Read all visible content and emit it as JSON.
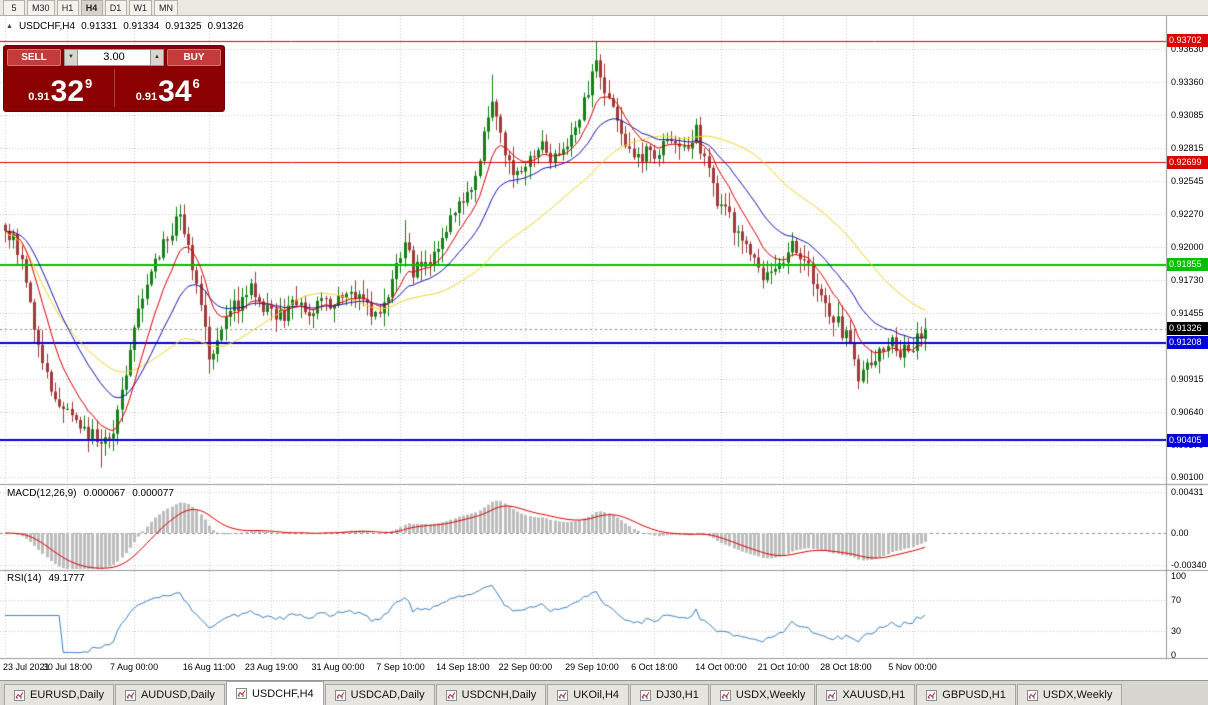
{
  "icons": {
    "symbol_arrow": "▲",
    "volume_down": "▼",
    "volume_up": "▲"
  },
  "toolbar": {
    "periods": [
      "5",
      "M30",
      "H1",
      "H4",
      "D1",
      "W1",
      "MN"
    ],
    "active": "H4"
  },
  "symbol_header": {
    "symbol": "USDCHF,H4",
    "open": "0.91331",
    "high": "0.91334",
    "low": "0.91325",
    "close": "0.91326"
  },
  "trade_panel": {
    "sell_label": "SELL",
    "buy_label": "BUY",
    "volume": "3.00",
    "sell_price": {
      "prefix": "0.91",
      "big": "32",
      "sup": "9"
    },
    "buy_price": {
      "prefix": "0.91",
      "big": "34",
      "sup": "6"
    }
  },
  "indicators": {
    "macd": {
      "label": "MACD(12,26,9)",
      "value_main": "0.000067",
      "value_signal": "0.000077",
      "axis_ticks": [
        {
          "text": "0.00431",
          "value": 0.00431
        },
        {
          "text": "0.00",
          "value": 0
        },
        {
          "text": "-0.00340",
          "value": -0.0034
        }
      ]
    },
    "rsi": {
      "label": "RSI(14)",
      "value": "49.1777",
      "axis_ticks": [
        {
          "text": "100",
          "value": 100
        },
        {
          "text": "70",
          "value": 70
        },
        {
          "text": "30",
          "value": 30
        },
        {
          "text": "0",
          "value": 0
        }
      ],
      "levels": [
        70,
        30
      ]
    }
  },
  "chart_data": {
    "type": "candlestick",
    "symbol": "USDCHF",
    "timeframe": "H4",
    "ohlc_header": [
      0.91331,
      0.91334,
      0.91325,
      0.91326
    ],
    "y_axis_ticks": [
      0.9363,
      0.9336,
      0.93085,
      0.92815,
      0.92545,
      0.9227,
      0.92,
      0.9173,
      0.91455,
      0.9118,
      0.90915,
      0.9064,
      0.9037,
      0.901
    ],
    "y_range": [
      0.90045,
      0.93905
    ],
    "hlines": [
      {
        "price": 0.93702,
        "label": "0.93702",
        "color": "#DD0000",
        "width": 1
      },
      {
        "price": 0.92699,
        "label": "0.92699",
        "color": "#DD0000",
        "width": 1
      },
      {
        "price": 0.91855,
        "label": "0.91855",
        "color": "#00C000",
        "width": 2
      },
      {
        "price": 0.91208,
        "label": "0.91208",
        "color": "#0000DD",
        "width": 2
      },
      {
        "price": 0.90405,
        "label": "0.90405",
        "color": "#0000DD",
        "width": 2
      }
    ],
    "current_price": {
      "value": 0.91326,
      "label": "0.91326",
      "color": "#000000"
    },
    "x_axis_labels": [
      {
        "text": "23 Jul 2021",
        "i": 0
      },
      {
        "text": "30 Jul 18:00",
        "i": 15
      },
      {
        "text": "7 Aug 00:00",
        "i": 31
      },
      {
        "text": "16 Aug 11:00",
        "i": 49
      },
      {
        "text": "23 Aug 19:00",
        "i": 64
      },
      {
        "text": "31 Aug 00:00",
        "i": 80
      },
      {
        "text": "7 Sep 10:00",
        "i": 95
      },
      {
        "text": "14 Sep 18:00",
        "i": 110
      },
      {
        "text": "22 Sep 00:00",
        "i": 125
      },
      {
        "text": "29 Sep 10:00",
        "i": 141
      },
      {
        "text": "6 Oct 18:00",
        "i": 156
      },
      {
        "text": "14 Oct 00:00",
        "i": 172
      },
      {
        "text": "21 Oct 10:00",
        "i": 187
      },
      {
        "text": "28 Oct 18:00",
        "i": 202
      },
      {
        "text": "5 Nov 00:00",
        "i": 218
      }
    ],
    "candle_count": 222,
    "price_path_anchors": [
      [
        0,
        0.9215
      ],
      [
        4,
        0.9195
      ],
      [
        7,
        0.913
      ],
      [
        12,
        0.9075
      ],
      [
        16,
        0.9062
      ],
      [
        19,
        0.905
      ],
      [
        23,
        0.9038
      ],
      [
        26,
        0.905
      ],
      [
        29,
        0.9095
      ],
      [
        32,
        0.9155
      ],
      [
        36,
        0.919
      ],
      [
        40,
        0.9212
      ],
      [
        42,
        0.9228
      ],
      [
        44,
        0.92
      ],
      [
        47,
        0.915
      ],
      [
        49,
        0.9108
      ],
      [
        52,
        0.913
      ],
      [
        55,
        0.915
      ],
      [
        59,
        0.9165
      ],
      [
        62,
        0.9148
      ],
      [
        66,
        0.9142
      ],
      [
        70,
        0.9155
      ],
      [
        74,
        0.9148
      ],
      [
        79,
        0.9155
      ],
      [
        84,
        0.9162
      ],
      [
        88,
        0.9145
      ],
      [
        91,
        0.9152
      ],
      [
        94,
        0.9185
      ],
      [
        96,
        0.9208
      ],
      [
        98,
        0.918
      ],
      [
        101,
        0.9185
      ],
      [
        104,
        0.9205
      ],
      [
        108,
        0.9225
      ],
      [
        112,
        0.925
      ],
      [
        115,
        0.929
      ],
      [
        117,
        0.932
      ],
      [
        119,
        0.9292
      ],
      [
        122,
        0.9255
      ],
      [
        125,
        0.9268
      ],
      [
        129,
        0.9282
      ],
      [
        131,
        0.9268
      ],
      [
        135,
        0.928
      ],
      [
        138,
        0.9305
      ],
      [
        141,
        0.934
      ],
      [
        142,
        0.9358
      ],
      [
        144,
        0.933
      ],
      [
        147,
        0.93
      ],
      [
        151,
        0.9275
      ],
      [
        155,
        0.9278
      ],
      [
        159,
        0.9282
      ],
      [
        163,
        0.9278
      ],
      [
        166,
        0.9298
      ],
      [
        168,
        0.927
      ],
      [
        171,
        0.9235
      ],
      [
        175,
        0.9218
      ],
      [
        178,
        0.9202
      ],
      [
        182,
        0.9172
      ],
      [
        186,
        0.9188
      ],
      [
        189,
        0.9202
      ],
      [
        193,
        0.9185
      ],
      [
        196,
        0.9158
      ],
      [
        200,
        0.9138
      ],
      [
        203,
        0.9118
      ],
      [
        205,
        0.9096
      ],
      [
        209,
        0.911
      ],
      [
        212,
        0.9122
      ],
      [
        215,
        0.9113
      ],
      [
        218,
        0.9118
      ],
      [
        221,
        0.91326
      ]
    ],
    "spikes": [
      {
        "i": 23,
        "low": 0.9018
      },
      {
        "i": 96,
        "high": 0.9222
      },
      {
        "i": 117,
        "high": 0.9342
      },
      {
        "i": 142,
        "high": 0.937
      },
      {
        "i": 205,
        "low": 0.9084
      }
    ],
    "moving_averages": [
      {
        "type": "sma",
        "period": 44,
        "color": "#F2D327"
      },
      {
        "type": "ema",
        "period": 21,
        "color": "#1515B5"
      },
      {
        "type": "ema",
        "period": 9,
        "color": "#DD0000"
      }
    ],
    "colors": {
      "up": "#168016",
      "down": "#A03A3A",
      "grid": "#C8C8C8",
      "macd_hist": "#BDBDBD",
      "macd_signal": "#DD0000",
      "rsi_line": "#4080C0",
      "bid_line": "#888888"
    }
  },
  "tabs": {
    "active_index": 2,
    "items": [
      {
        "label": "EURUSD,Daily"
      },
      {
        "label": "AUDUSD,Daily"
      },
      {
        "label": "USDCHF,H4"
      },
      {
        "label": "USDCAD,Daily"
      },
      {
        "label": "USDCNH,Daily"
      },
      {
        "label": "UKOil,H4"
      },
      {
        "label": "DJ30,H1"
      },
      {
        "label": "USDX,Weekly"
      },
      {
        "label": "XAUUSD,H1"
      },
      {
        "label": "GBPUSD,H1"
      },
      {
        "label": "USDX,Weekly"
      }
    ]
  }
}
